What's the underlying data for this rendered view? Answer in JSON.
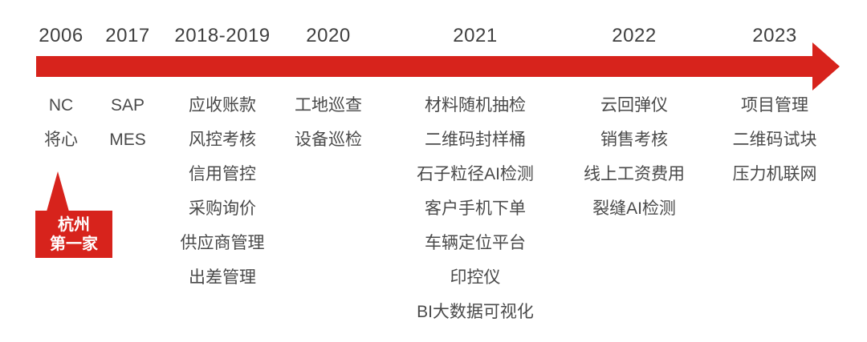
{
  "timeline": {
    "arrow": {
      "color": "#d7231c",
      "direction": "right"
    },
    "columns": [
      {
        "year": "2006",
        "items": [
          "NC",
          "将心"
        ]
      },
      {
        "year": "2017",
        "items": [
          "SAP",
          "MES"
        ]
      },
      {
        "year": "2018-2019",
        "items": [
          "应收账款",
          "风控考核",
          "信用管控",
          "采购询价",
          "供应商管理",
          "出差管理"
        ]
      },
      {
        "year": "2020",
        "items": [
          "工地巡查",
          "设备巡检"
        ]
      },
      {
        "year": "2021",
        "items": [
          "材料随机抽检",
          "二维码封样桶",
          "石子粒径AI检测",
          "客户手机下单",
          "车辆定位平台",
          "印控仪",
          "BI大数据可视化"
        ]
      },
      {
        "year": "2022",
        "items": [
          "云回弹仪",
          "销售考核",
          "线上工资费用",
          "裂缝AI检测"
        ]
      },
      {
        "year": "2023",
        "items": [
          "项目管理",
          "二维码试块",
          "压力机联网"
        ]
      }
    ],
    "callout": {
      "lines": [
        "杭州",
        "第一家"
      ],
      "bg": "#d7231c",
      "text_color": "#ffffff",
      "points_to_year": "2006"
    }
  }
}
